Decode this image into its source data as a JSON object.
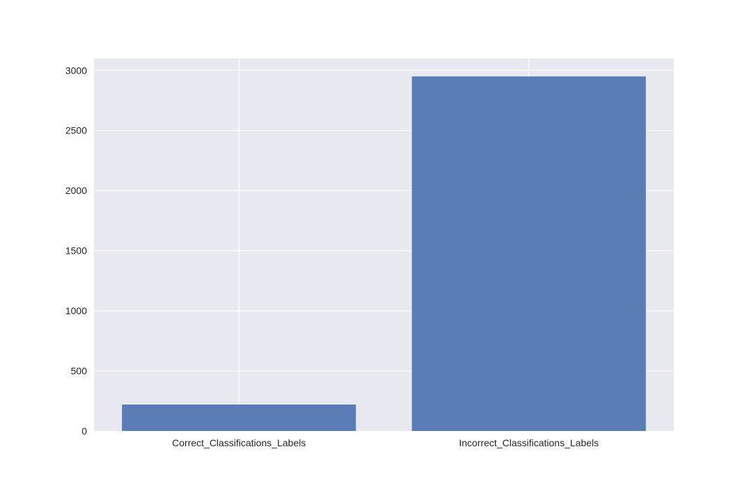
{
  "chart_data": {
    "type": "bar",
    "categories": [
      "Correct_Classifications_Labels",
      "Incorrect_Classifications_Labels"
    ],
    "values": [
      220,
      2950
    ],
    "title": "",
    "xlabel": "",
    "ylabel": "",
    "ylim": [
      0,
      3100
    ],
    "yticks": [
      0,
      500,
      1000,
      1500,
      2000,
      2500,
      3000
    ],
    "grid": true,
    "style": {
      "bar_color": "#5b7db6",
      "plot_background": "#e8e8f0",
      "grid_color": "#ffffff",
      "tick_label_color": "#262626"
    }
  }
}
